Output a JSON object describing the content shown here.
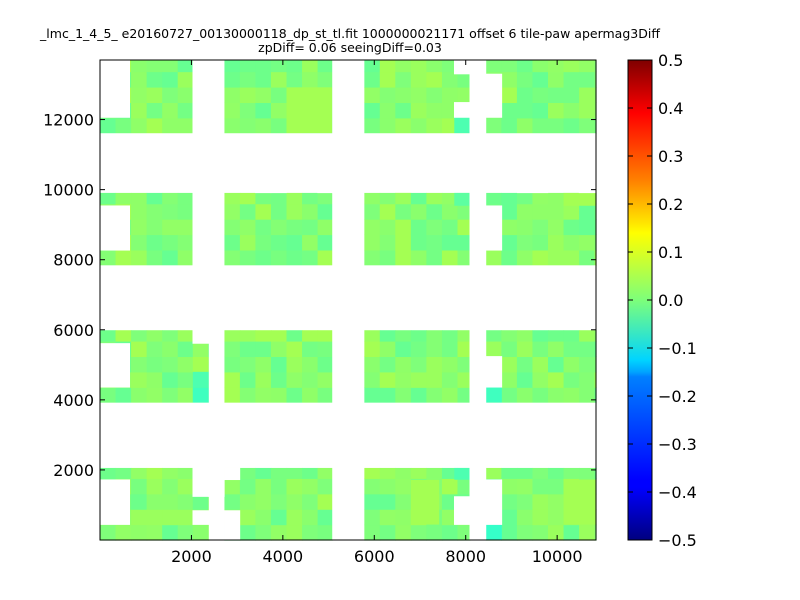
{
  "chart_data": {
    "type": "heatmap",
    "title_line1": "_lmc_1_4_5_ e20160727_00130000118_dp_st_tl.fit 1000000021171 offset 6 tile-paw apermag3Diff",
    "title_line2": "zpDiff= 0.06 seeingDiff=0.03",
    "xlabel": "",
    "ylabel": "",
    "xlim": [
      0,
      10850
    ],
    "ylim": [
      0,
      13700
    ],
    "x_ticks": [
      2000,
      4000,
      6000,
      8000,
      10000
    ],
    "y_ticks": [
      2000,
      4000,
      6000,
      8000,
      10000,
      12000
    ],
    "colorbar": {
      "colormap": "jet",
      "range": [
        -0.5,
        0.5
      ],
      "ticks": [
        0.5,
        0.4,
        0.3,
        0.2,
        0.1,
        0.0,
        -0.1,
        -0.2,
        -0.3,
        -0.4,
        -0.5
      ],
      "tick_labels": [
        "0.5",
        "0.4",
        "0.3",
        "0.2",
        "0.1",
        "0.0",
        "−0.1",
        "−0.2",
        "−0.3",
        "−0.4",
        "−0.5"
      ]
    },
    "cell_size": [
      340,
      440
    ],
    "detector_columns": [
      {
        "x": [
          0,
          2030
        ]
      },
      {
        "x": [
          2030,
          2380
        ]
      },
      {
        "x": [
          2720,
          5080
        ]
      },
      {
        "x": [
          5780,
          8090
        ]
      },
      {
        "x": [
          8440,
          10850
        ]
      }
    ],
    "detector_rows": [
      {
        "y": [
          0,
          2060
        ]
      },
      {
        "y": [
          3920,
          5990
        ]
      },
      {
        "y": [
          7840,
          9910
        ]
      },
      {
        "y": [
          11610,
          13700
        ]
      }
    ],
    "missing_regions": [
      {
        "x": [
          0,
          650
        ],
        "y": [
          440,
          1720
        ]
      },
      {
        "x": [
          0,
          650
        ],
        "y": [
          4360,
          5610
        ]
      },
      {
        "x": [
          0,
          650
        ],
        "y": [
          8270,
          9540
        ]
      },
      {
        "x": [
          0,
          650
        ],
        "y": [
          12060,
          13700
        ]
      },
      {
        "x": [
          2030,
          2380
        ],
        "y": [
          1240,
          2060
        ]
      },
      {
        "x": [
          2030,
          2380
        ],
        "y": [
          5610,
          5990
        ]
      },
      {
        "x": [
          2030,
          2380
        ],
        "y": [
          7840,
          9910
        ]
      },
      {
        "x": [
          2030,
          2380
        ],
        "y": [
          11610,
          13700
        ]
      },
      {
        "x": [
          2030,
          2380
        ],
        "y": [
          440,
          840
        ]
      },
      {
        "x": [
          2380,
          2720
        ],
        "y": [
          1240,
          1720
        ]
      },
      {
        "x": [
          7750,
          8090
        ],
        "y": [
          440,
          840
        ]
      },
      {
        "x": [
          7750,
          8090
        ],
        "y": [
          13300,
          13700
        ]
      },
      {
        "x": [
          7750,
          8090
        ],
        "y": [
          12060,
          12490
        ]
      },
      {
        "x": [
          8090,
          8440
        ],
        "y": [
          0,
          13700
        ]
      },
      {
        "x": [
          8440,
          8790
        ],
        "y": [
          440,
          1720
        ]
      },
      {
        "x": [
          8440,
          8790
        ],
        "y": [
          4360,
          5240
        ]
      },
      {
        "x": [
          8440,
          8790
        ],
        "y": [
          8270,
          9540
        ]
      },
      {
        "x": [
          8440,
          8790
        ],
        "y": [
          12060,
          13300
        ]
      },
      {
        "x": [
          3740,
          4080
        ],
        "y": [
          9910,
          10350
        ]
      },
      {
        "x": [
          4760,
          5080
        ],
        "y": [
          9910,
          10350
        ]
      },
      {
        "x": [
          3400,
          3740
        ],
        "y": [
          9910,
          10350
        ]
      },
      {
        "x": [
          5080,
          5440
        ],
        "y": [
          9910,
          10350
        ]
      },
      {
        "x": [
          2720,
          3060
        ],
        "y": [
          1720,
          2060
        ]
      },
      {
        "x": [
          2720,
          3060
        ],
        "y": [
          0,
          840
        ]
      },
      {
        "x": [
          7750,
          8090
        ],
        "y": [
          840,
          1240
        ]
      },
      {
        "x": [
          8790,
          9130
        ],
        "y": [
          9910,
          9910
        ]
      },
      {
        "x": [
          9130,
          9800
        ],
        "y": [
          9910,
          10350
        ]
      },
      {
        "x": [
          10480,
          10850
        ],
        "y": [
          9910,
          10350
        ]
      },
      {
        "x": [
          8090,
          8440
        ],
        "y": [
          0,
          13700
        ]
      }
    ]
  }
}
